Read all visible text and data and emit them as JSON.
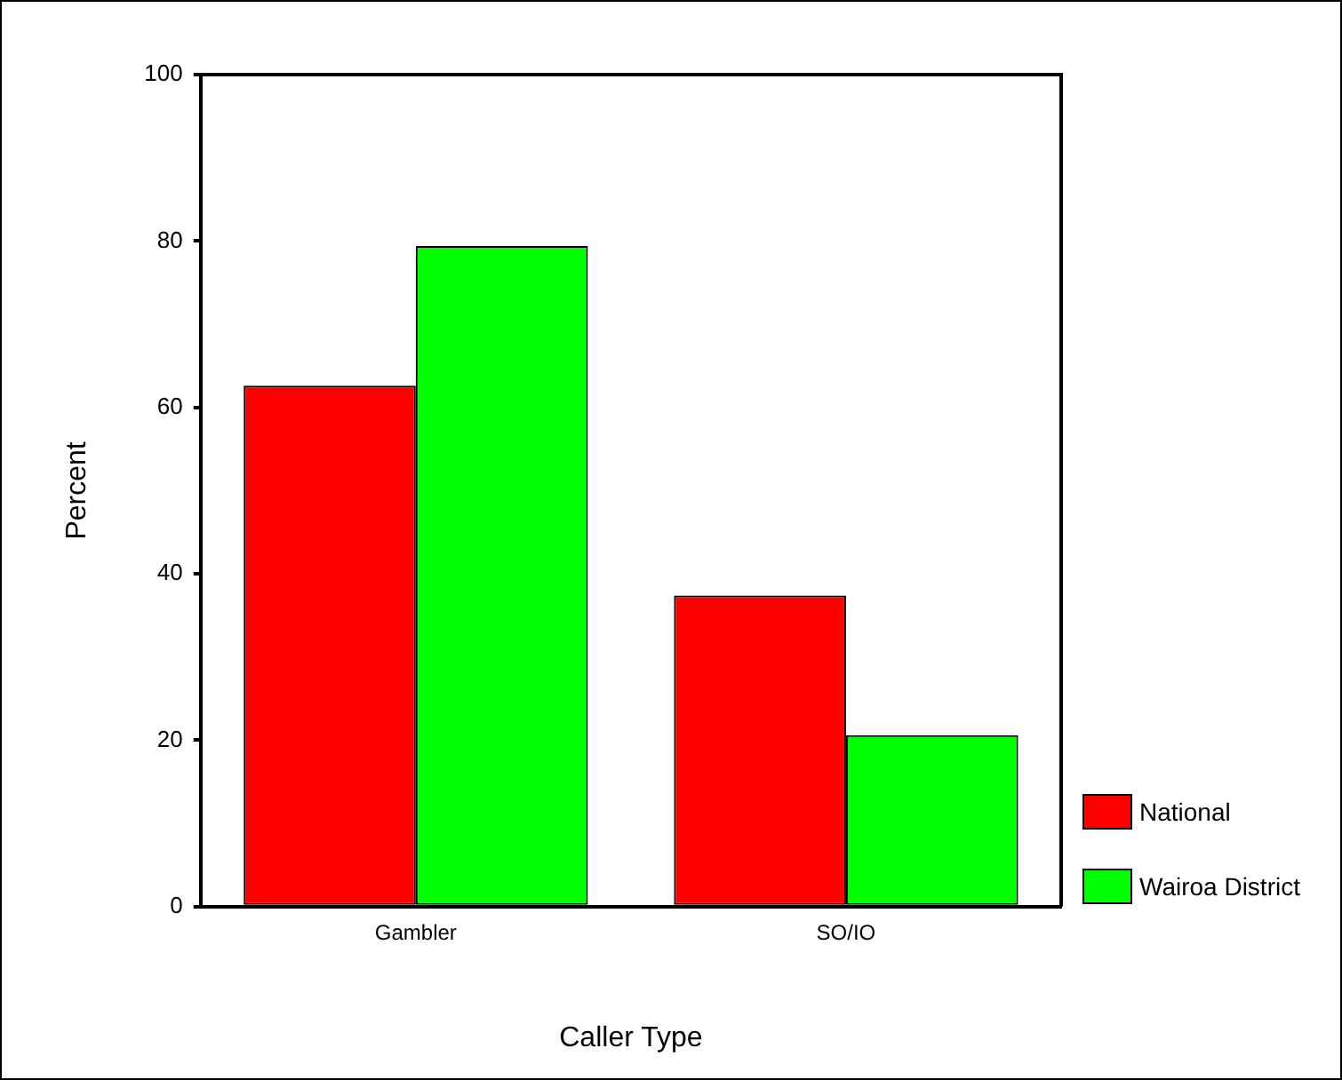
{
  "chart_data": {
    "type": "bar",
    "xlabel": "Caller Type",
    "ylabel": "Percent",
    "categories": [
      "Gambler",
      "SO/IO"
    ],
    "series": [
      {
        "name": "National",
        "color": "#ff0000",
        "values": [
          62.6,
          37.4
        ]
      },
      {
        "name": "Wairoa District",
        "color": "#00ff00",
        "values": [
          79.4,
          20.6
        ]
      }
    ],
    "ylim": [
      0,
      100
    ],
    "yticks": [
      0,
      20,
      40,
      60,
      80,
      100
    ],
    "grid": false,
    "legend": "right"
  }
}
